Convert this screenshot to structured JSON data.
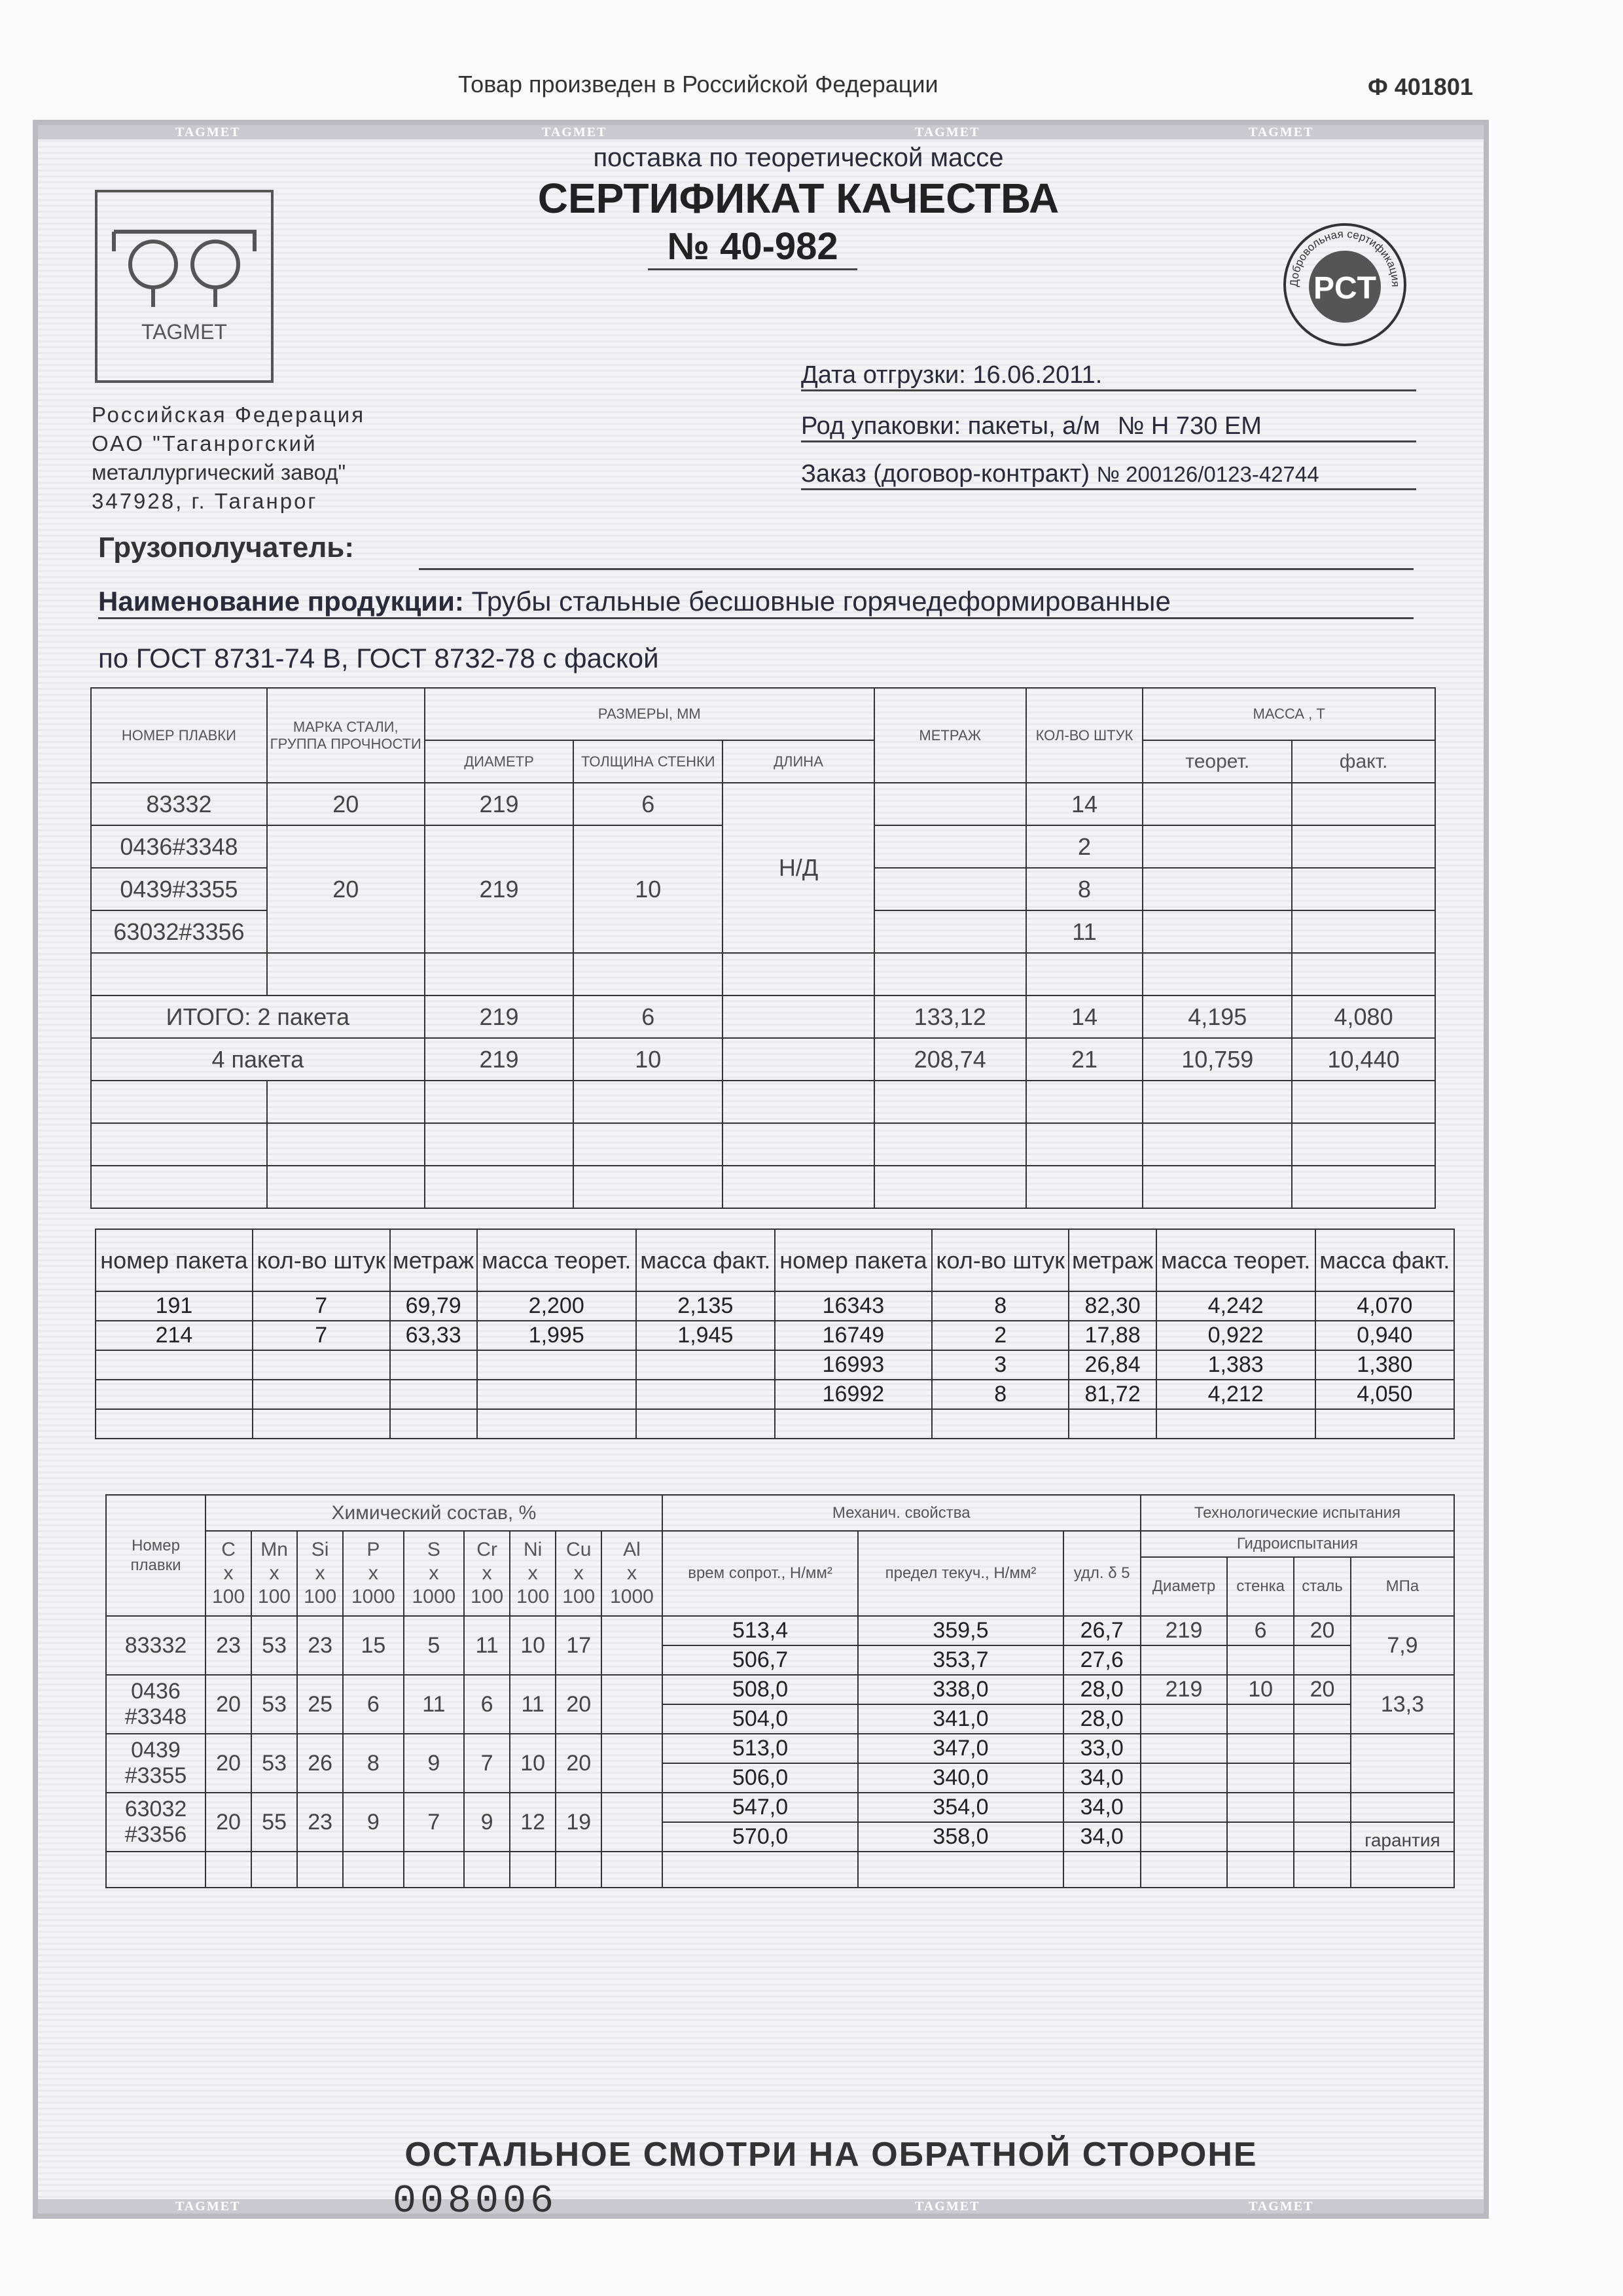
{
  "top_note": "Товар произведен в Российской Федерации",
  "form_code": "Ф 401801",
  "watermark": "TAGMET",
  "subtitle": "поставка по теоретической массе",
  "title": "СЕРТИФИКАТ КАЧЕСТВА",
  "number": "№ 40-982",
  "logo_text": "TAGMET",
  "cert_mark": {
    "text": "Добровольная сертификация",
    "letters": "PCT"
  },
  "issuer": {
    "lines": [
      "Российская Федерация",
      "ОАО \"Таганрогский",
      "металлургический завод\"",
      "347928, г. Таганрог"
    ]
  },
  "shipment": {
    "date_label": "Дата отгрузки:",
    "date": "16.06.2011.",
    "pack_label": "Род упаковки: пакеты, а/м",
    "vehicle": "№ Н 730 ЕМ",
    "order_label": "Заказ (договор-контракт)",
    "order": "№ 200126/0123-42744"
  },
  "consignee_label": "Грузополучатель:",
  "product_label": "Наименование продукции:",
  "product_name": "Трубы стальные бесшовные горячедеформированные",
  "product_std": "по ГОСТ 8731-74 В, ГОСТ 8732-78 с фаской",
  "table1": {
    "headers": {
      "heat": "НОМЕР ПЛАВКИ",
      "grade": "МАРКА СТАЛИ, ГРУППА ПРОЧНОСТИ",
      "sizes": "РАЗМЕРЫ, ММ",
      "diameter": "ДИАМЕТР",
      "wall": "ТОЛЩИНА СТЕНКИ",
      "length": "ДЛИНА",
      "meters": "МЕТРАЖ",
      "count": "КОЛ-ВО ШТУК",
      "mass": "МАССА , Т",
      "mass_theor": "теорет.",
      "mass_fact": "факт."
    },
    "heats": [
      "83332",
      "0436#3348",
      "0439#3355",
      "63032#3356"
    ],
    "group1": {
      "grade": "20",
      "diameter": "219",
      "wall": "6"
    },
    "group2": {
      "grade": "20",
      "diameter": "219",
      "wall": "10"
    },
    "length": "Н/Д",
    "counts": [
      "14",
      "2",
      "8",
      "11"
    ],
    "totals": [
      {
        "label": "ИТОГО: 2 пакета",
        "diameter": "219",
        "wall": "6",
        "meters": "133,12",
        "count": "14",
        "theor": "4,195",
        "fact": "4,080"
      },
      {
        "label": "4 пакета",
        "diameter": "219",
        "wall": "10",
        "meters": "208,74",
        "count": "21",
        "theor": "10,759",
        "fact": "10,440"
      }
    ]
  },
  "table2": {
    "headers": [
      "номер пакета",
      "кол-во штук",
      "метраж",
      "масса теорет.",
      "масса факт.",
      "номер пакета",
      "кол-во штук",
      "метраж",
      "масса теорет.",
      "масса факт."
    ],
    "rows": [
      [
        "191",
        "7",
        "69,79",
        "2,200",
        "2,135",
        "16343",
        "8",
        "82,30",
        "4,242",
        "4,070"
      ],
      [
        "214",
        "7",
        "63,33",
        "1,995",
        "1,945",
        "16749",
        "2",
        "17,88",
        "0,922",
        "0,940"
      ],
      [
        "",
        "",
        "",
        "",
        "",
        "16993",
        "3",
        "26,84",
        "1,383",
        "1,380"
      ],
      [
        "",
        "",
        "",
        "",
        "",
        "16992",
        "8",
        "81,72",
        "4,212",
        "4,050"
      ],
      [
        "",
        "",
        "",
        "",
        "",
        "",
        "",
        "",
        "",
        ""
      ]
    ]
  },
  "table3": {
    "headers": {
      "heat": "Номер плавки",
      "chem": "Химический состав, %",
      "mech": "Механич. свойства",
      "tech": "Технологические испытания",
      "hydro": "Гидроиспытания",
      "elements": [
        [
          "C",
          "x",
          "100"
        ],
        [
          "Mn",
          "x",
          "100"
        ],
        [
          "Si",
          "x",
          "100"
        ],
        [
          "P",
          "x",
          "1000"
        ],
        [
          "S",
          "x",
          "1000"
        ],
        [
          "Cr",
          "x",
          "100"
        ],
        [
          "Ni",
          "x",
          "100"
        ],
        [
          "Cu",
          "x",
          "100"
        ],
        [
          "Al",
          "x",
          "1000"
        ]
      ],
      "mech_cols": [
        "врем сопрот., Н/мм²",
        "предел текуч., Н/мм²",
        "удл. δ 5"
      ],
      "hydro_cols": [
        "Диаметр",
        "стенка",
        "сталь",
        "МПа"
      ]
    },
    "rows": [
      {
        "heat": "83332",
        "chem": [
          "23",
          "53",
          "23",
          "15",
          "5",
          "11",
          "10",
          "17",
          ""
        ],
        "mech": [
          [
            "513,4",
            "359,5",
            "26,7"
          ],
          [
            "506,7",
            "353,7",
            "27,6"
          ]
        ],
        "hydro": [
          "219",
          "6",
          "20"
        ],
        "mpa": "7,9"
      },
      {
        "heat": "0436 #3348",
        "chem": [
          "20",
          "53",
          "25",
          "6",
          "11",
          "6",
          "11",
          "20",
          ""
        ],
        "mech": [
          [
            "508,0",
            "338,0",
            "28,0"
          ],
          [
            "504,0",
            "341,0",
            "28,0"
          ]
        ],
        "hydro": [
          "219",
          "10",
          "20"
        ],
        "mpa": "13,3"
      },
      {
        "heat": "0439 #3355",
        "chem": [
          "20",
          "53",
          "26",
          "8",
          "9",
          "7",
          "10",
          "20",
          ""
        ],
        "mech": [
          [
            "513,0",
            "347,0",
            "33,0"
          ],
          [
            "506,0",
            "340,0",
            "34,0"
          ]
        ],
        "hydro": [
          "",
          "",
          ""
        ],
        "mpa": ""
      },
      {
        "heat": "63032 #3356",
        "chem": [
          "20",
          "55",
          "23",
          "9",
          "7",
          "9",
          "12",
          "19",
          ""
        ],
        "mech": [
          [
            "547,0",
            "354,0",
            "34,0"
          ],
          [
            "570,0",
            "358,0",
            "34,0"
          ]
        ],
        "hydro": [
          "",
          "",
          ""
        ],
        "mpa": "",
        "mpa_last": "гарантия"
      }
    ]
  },
  "footer_note": "ОСТАЛЬНОЕ СМОТРИ НА ОБРАТНОЙ СТОРОНЕ",
  "serial": "008006"
}
